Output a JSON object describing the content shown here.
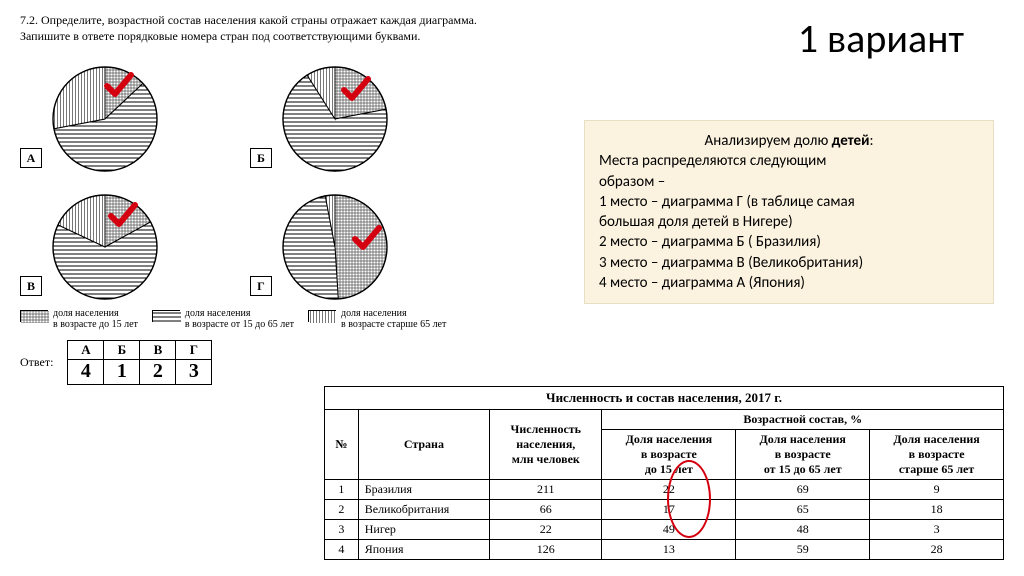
{
  "task": {
    "line1": "7.2.   Определите,  возрастной  состав  населения  какой  страны  отражает  каждая  диаграмма.",
    "line2": "Запишите в ответе порядковые номера стран под соответствующими буквами."
  },
  "heading": "1 вариант",
  "analysis": {
    "intro_pre": "Анализируем долю ",
    "intro_bold": "детей",
    "intro_post": ":",
    "l1": "Места распределяются следующим",
    "l2": "образом –",
    "l3": "1 место – диаграмма Г (в таблице самая",
    "l4": "большая доля детей в Нигере)",
    "l5": "2 место – диаграмма Б ( Бразилия)",
    "l6": "3 место – диаграмма В (Великобритания)",
    "l7": "4 место – диаграмма А (Япония)"
  },
  "pies": {
    "items": [
      {
        "label": "А",
        "u15": 13,
        "mid": 59,
        "over65": 28
      },
      {
        "label": "Б",
        "u15": 22,
        "mid": 69,
        "over65": 9
      },
      {
        "label": "В",
        "u15": 17,
        "mid": 65,
        "over65": 18
      },
      {
        "label": "Г",
        "u15": 49,
        "mid": 48,
        "over65": 3
      }
    ],
    "colors": {
      "stroke": "#000000",
      "check": "#d4000f"
    }
  },
  "legend": {
    "u15": "доля населения\nв возрасте до 15 лет",
    "mid": "доля населения\nв возрасте от 15 до 65 лет",
    "over65": "доля населения\nв возрасте старше 65 лет"
  },
  "answer": {
    "label": "Ответ:",
    "headers": [
      "А",
      "Б",
      "В",
      "Г"
    ],
    "values": [
      "4",
      "1",
      "2",
      "3"
    ]
  },
  "dataTable": {
    "title": "Численность и состав населения, 2017 г.",
    "h_no": "№",
    "h_country": "Страна",
    "h_pop": "Численность\nнаселения,\nмлн человек",
    "h_group": "Возрастной состав, %",
    "h_u15": "Доля населения\nв возрасте\nдо 15 лет",
    "h_mid": "Доля населения\nв возрасте\nот 15 до 65 лет",
    "h_over65": "Доля населения\nв возрасте\nстарше 65 лет",
    "rows": [
      {
        "n": "1",
        "country": "Бразилия",
        "pop": "211",
        "u15": "22",
        "mid": "69",
        "o65": "9"
      },
      {
        "n": "2",
        "country": "Великобритания",
        "pop": "66",
        "u15": "17",
        "mid": "65",
        "o65": "18"
      },
      {
        "n": "3",
        "country": "Нигер",
        "pop": "22",
        "u15": "49",
        "mid": "48",
        "o65": "3"
      },
      {
        "n": "4",
        "country": "Япония",
        "pop": "126",
        "u15": "13",
        "mid": "59",
        "o65": "28"
      }
    ]
  }
}
